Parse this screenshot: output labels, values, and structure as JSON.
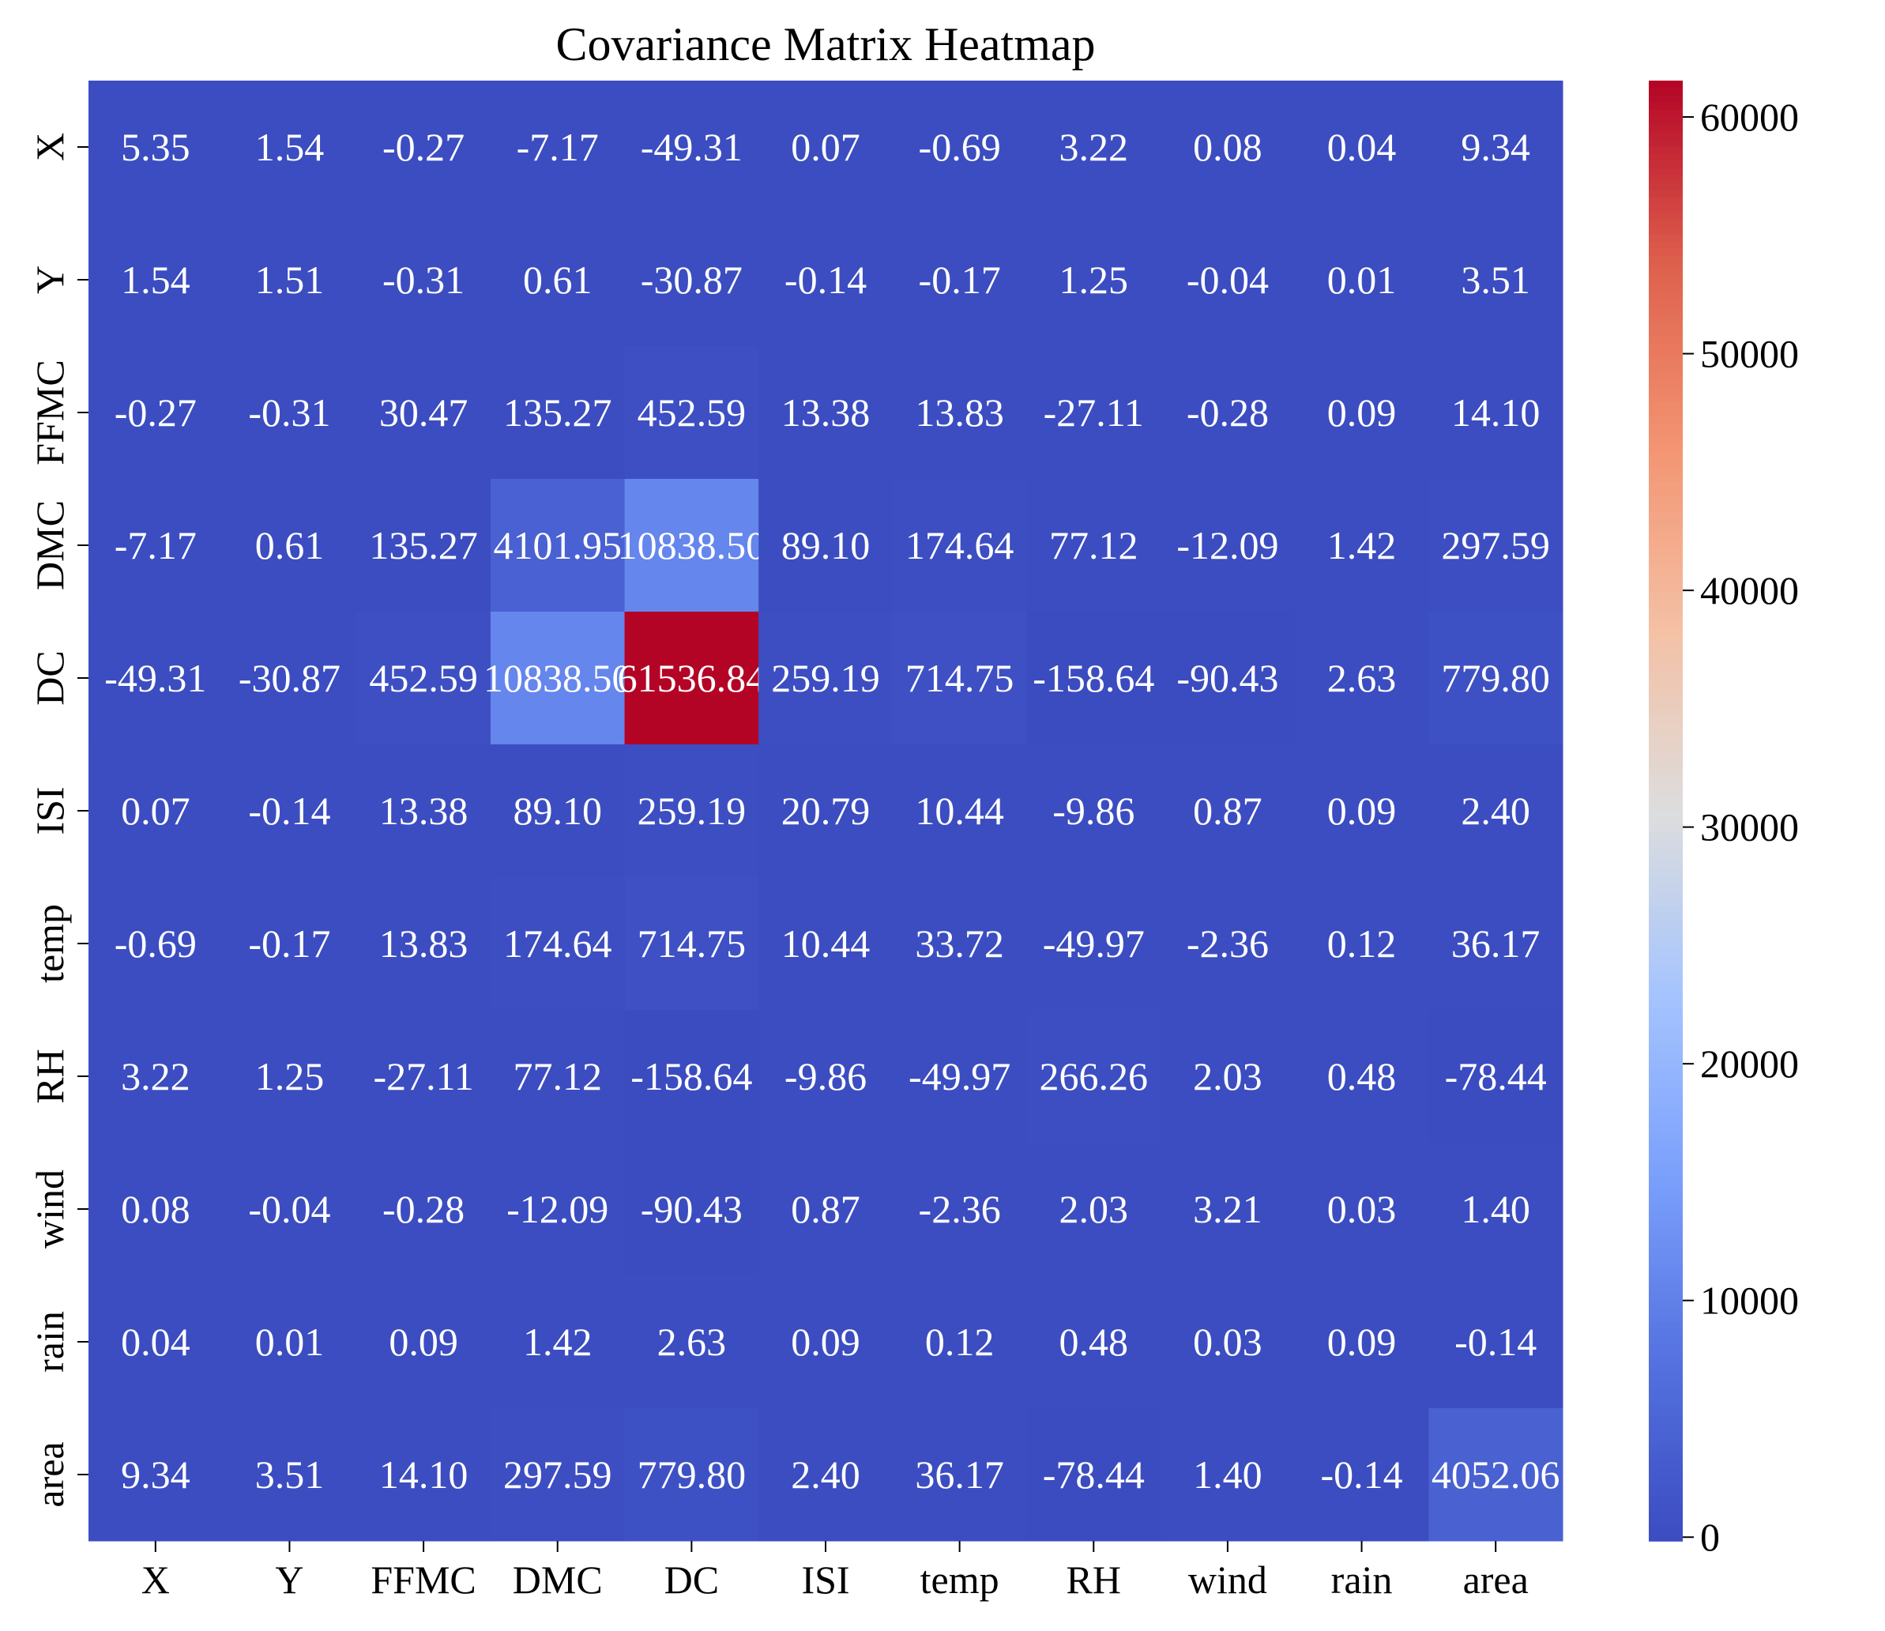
{
  "chart_data": {
    "type": "heatmap",
    "title": "Covariance Matrix Heatmap",
    "xlabel": "",
    "ylabel": "",
    "categories": [
      "X",
      "Y",
      "FFMC",
      "DMC",
      "DC",
      "ISI",
      "temp",
      "RH",
      "wind",
      "rain",
      "area"
    ],
    "cell_labels": [
      [
        "5.35",
        "1.54",
        "-0.27",
        "-7.17",
        "-49.31",
        "0.07",
        "-0.69",
        "3.22",
        "0.08",
        "0.04",
        "9.34"
      ],
      [
        "1.54",
        "1.51",
        "-0.31",
        "0.61",
        "-30.87",
        "-0.14",
        "-0.17",
        "1.25",
        "-0.04",
        "0.01",
        "3.51"
      ],
      [
        "-0.27",
        "-0.31",
        "30.47",
        "135.27",
        "452.59",
        "13.38",
        "13.83",
        "-27.11",
        "-0.28",
        "0.09",
        "14.10"
      ],
      [
        "-7.17",
        "0.61",
        "135.27",
        "4101.95",
        "10838.50",
        "89.10",
        "174.64",
        "77.12",
        "-12.09",
        "1.42",
        "297.59"
      ],
      [
        "-49.31",
        "-30.87",
        "452.59",
        "10838.50",
        "61536.84",
        "259.19",
        "714.75",
        "-158.64",
        "-90.43",
        "2.63",
        "779.80"
      ],
      [
        "0.07",
        "-0.14",
        "13.38",
        "89.10",
        "259.19",
        "20.79",
        "10.44",
        "-9.86",
        "0.87",
        "0.09",
        "2.40"
      ],
      [
        "-0.69",
        "-0.17",
        "13.83",
        "174.64",
        "714.75",
        "10.44",
        "33.72",
        "-49.97",
        "-2.36",
        "0.12",
        "36.17"
      ],
      [
        "3.22",
        "1.25",
        "-27.11",
        "77.12",
        "-158.64",
        "-9.86",
        "-49.97",
        "266.26",
        "2.03",
        "0.48",
        "-78.44"
      ],
      [
        "0.08",
        "-0.04",
        "-0.28",
        "-12.09",
        "-90.43",
        "0.87",
        "-2.36",
        "2.03",
        "3.21",
        "0.03",
        "1.40"
      ],
      [
        "0.04",
        "0.01",
        "0.09",
        "1.42",
        "2.63",
        "0.09",
        "0.12",
        "0.48",
        "0.03",
        "0.09",
        "-0.14"
      ],
      [
        "9.34",
        "3.51",
        "14.10",
        "297.59",
        "779.80",
        "2.40",
        "36.17",
        "-78.44",
        "1.40",
        "-0.14",
        "4052.06"
      ]
    ],
    "colorbar": {
      "colormap": "coolwarm",
      "min": -158.64,
      "max": 61536.84,
      "ticks": [
        0,
        10000,
        20000,
        30000,
        40000,
        50000,
        60000
      ]
    },
    "grid": false,
    "legend": "colorbar-right"
  }
}
